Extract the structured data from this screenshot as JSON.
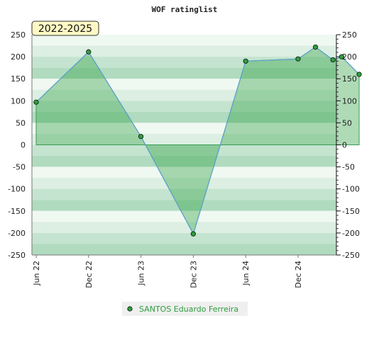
{
  "chart_data": {
    "type": "area",
    "title": "WOF ratinglist",
    "badge": "2022-2025",
    "xlabel": "",
    "ylabel": "",
    "ylim": [
      -250,
      250
    ],
    "yticks": [
      250,
      200,
      150,
      100,
      50,
      0,
      -50,
      -100,
      -150,
      -200,
      -250
    ],
    "xticks": [
      "Jun 22",
      "Dec 22",
      "Jun 23",
      "Dec 23",
      "Jun 24",
      "Dec 24"
    ],
    "grid": true,
    "legend_position": "bottom",
    "series": [
      {
        "name": "SANTOS Eduardo Ferreira",
        "color": "#2e9e3e",
        "points": [
          {
            "x": "Jun 22",
            "y": 97
          },
          {
            "x": "Dec 22",
            "y": 211
          },
          {
            "x": "Jun 23",
            "y": 19
          },
          {
            "x": "Dec 23",
            "y": -202
          },
          {
            "x": "Jun 24",
            "y": 190
          },
          {
            "x": "Dec 24",
            "y": 195
          },
          {
            "x": "Feb 25",
            "y": 222
          },
          {
            "x": "Apr 25",
            "y": 193
          },
          {
            "x": "May 25",
            "y": 200
          },
          {
            "x": "Jul 25",
            "y": 160
          }
        ]
      }
    ]
  }
}
